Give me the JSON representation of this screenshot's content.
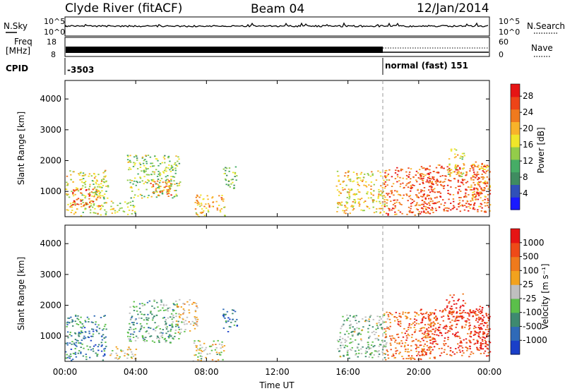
{
  "header": {
    "station": "Clyde River (fitACF)",
    "beam": "Beam 04",
    "date": "12/Jan/2014"
  },
  "summary": {
    "nsky_label": "N.Sky",
    "nsearch_label": "N.Search",
    "freq_label_line1": "Freq",
    "freq_label_line2": "[MHz]",
    "nave_label": "Nave",
    "cpid_label": "CPID",
    "left_ticks_top": [
      "10^5",
      "10^0"
    ],
    "right_ticks_top": [
      "10^5",
      "10^0"
    ],
    "left_ticks_freq": [
      "18",
      "8"
    ],
    "right_ticks_nave": [
      "60",
      "0"
    ],
    "cpid_first": "-3503",
    "cpid_second": "normal (fast) 151",
    "cpid_switch_hour": 18.0
  },
  "chart_data": [
    {
      "type": "heatmap",
      "name": "power",
      "xlabel": "Time UT",
      "ylabel": "Slant Range [km]",
      "x_ticks": [
        "00:00",
        "04:00",
        "08:00",
        "12:00",
        "16:00",
        "20:00",
        "00:00"
      ],
      "x_tick_hours": [
        0,
        4,
        8,
        12,
        16,
        20,
        24
      ],
      "xlim": [
        0,
        24
      ],
      "ylim": [
        180,
        4600
      ],
      "y_ticks": [
        1000,
        2000,
        3000,
        4000
      ],
      "colorbar": {
        "label": "Power [dB]",
        "ticks": [
          "4",
          "8",
          "12",
          "16",
          "20",
          "24",
          "28"
        ],
        "tick_values": [
          4,
          8,
          12,
          16,
          20,
          24,
          28
        ],
        "range": [
          0,
          31
        ],
        "colors": [
          "#1a1aff",
          "#3050b8",
          "#3f8c60",
          "#46ad66",
          "#93cc4a",
          "#f0e62a",
          "#f8b32a",
          "#f07a1e",
          "#ee4418",
          "#e61414"
        ]
      },
      "regions": [
        {
          "t0": 0.0,
          "t1": 2.3,
          "r0": 220,
          "r1": 1700,
          "level": 0.55
        },
        {
          "t0": 0.2,
          "t1": 2.0,
          "r0": 500,
          "r1": 1100,
          "level": 0.85
        },
        {
          "t0": 1.6,
          "t1": 2.4,
          "r0": 800,
          "r1": 1300,
          "level": 0.5
        },
        {
          "t0": 3.5,
          "t1": 6.5,
          "r0": 800,
          "r1": 2200,
          "level": 0.45
        },
        {
          "t0": 4.8,
          "t1": 6.2,
          "r0": 800,
          "r1": 1400,
          "level": 0.75
        },
        {
          "t0": 2.5,
          "t1": 4.0,
          "r0": 250,
          "r1": 700,
          "level": 0.5
        },
        {
          "t0": 7.2,
          "t1": 9.0,
          "r0": 200,
          "r1": 900,
          "level": 0.65
        },
        {
          "t0": 8.9,
          "t1": 9.7,
          "r0": 1100,
          "r1": 1900,
          "level": 0.4
        },
        {
          "t0": 15.3,
          "t1": 18.2,
          "r0": 300,
          "r1": 1700,
          "level": 0.6
        },
        {
          "t0": 18.0,
          "t1": 21.0,
          "r0": 250,
          "r1": 1800,
          "level": 0.8
        },
        {
          "t0": 20.0,
          "t1": 24.0,
          "r0": 350,
          "r1": 1900,
          "level": 0.85
        },
        {
          "t0": 21.5,
          "t1": 22.6,
          "r0": 1500,
          "r1": 2400,
          "level": 0.55
        },
        {
          "t0": 22.8,
          "t1": 24.0,
          "r0": 500,
          "r1": 2000,
          "level": 0.7
        }
      ]
    },
    {
      "type": "heatmap",
      "name": "velocity",
      "xlabel": "Time UT",
      "ylabel": "Slant Range [km]",
      "x_ticks": [
        "00:00",
        "04:00",
        "08:00",
        "12:00",
        "16:00",
        "20:00",
        "00:00"
      ],
      "x_tick_hours": [
        0,
        4,
        8,
        12,
        16,
        20,
        24
      ],
      "xlim": [
        0,
        24
      ],
      "ylim": [
        180,
        4600
      ],
      "y_ticks": [
        1000,
        2000,
        3000,
        4000
      ],
      "colorbar": {
        "label": "Velocity [m s⁻¹]",
        "ticks": [
          "1000",
          "500",
          "100",
          "25",
          "-25",
          "-100",
          "-500",
          "-1000"
        ],
        "colors": [
          "#1a3fc8",
          "#2f6ab8",
          "#3e8a70",
          "#5bbf4a",
          "#bfbfbf",
          "#f2a21e",
          "#ef7a1c",
          "#ee4a18",
          "#e61414"
        ]
      },
      "regions": [
        {
          "t0": 0.0,
          "t1": 2.3,
          "r0": 220,
          "r1": 1700,
          "level": 0.25
        },
        {
          "t0": 3.5,
          "t1": 6.5,
          "r0": 800,
          "r1": 2200,
          "level": 0.35
        },
        {
          "t0": 6.2,
          "t1": 7.5,
          "r0": 1100,
          "r1": 2200,
          "level": 0.55
        },
        {
          "t0": 2.5,
          "t1": 4.0,
          "r0": 250,
          "r1": 700,
          "level": 0.5
        },
        {
          "t0": 7.2,
          "t1": 9.0,
          "r0": 200,
          "r1": 900,
          "level": 0.5
        },
        {
          "t0": 8.9,
          "t1": 9.7,
          "r0": 1100,
          "r1": 1900,
          "level": 0.2
        },
        {
          "t0": 15.3,
          "t1": 18.2,
          "r0": 300,
          "r1": 1700,
          "level": 0.4
        },
        {
          "t0": 18.0,
          "t1": 21.0,
          "r0": 250,
          "r1": 1800,
          "level": 0.75
        },
        {
          "t0": 20.0,
          "t1": 24.0,
          "r0": 350,
          "r1": 1900,
          "level": 0.85
        },
        {
          "t0": 21.5,
          "t1": 22.6,
          "r0": 1500,
          "r1": 2400,
          "level": 0.9
        },
        {
          "t0": 22.8,
          "t1": 24.0,
          "r0": 500,
          "r1": 2000,
          "level": 0.95
        }
      ]
    }
  ]
}
